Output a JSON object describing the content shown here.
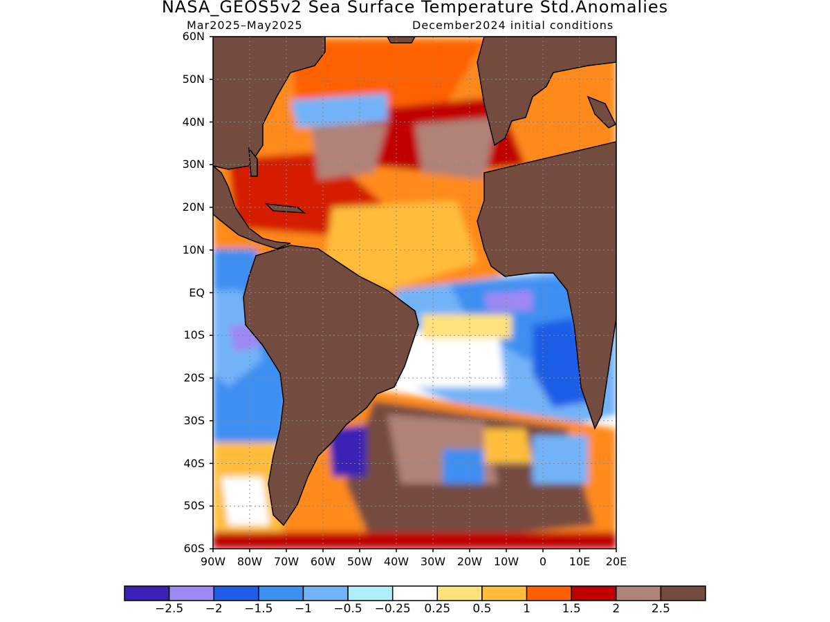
{
  "title": "NASA_GEOS5v2 Sea Surface Temperature Std.Anomalies",
  "subtitle_left": "Mar2025–May2025",
  "subtitle_right": "December2024 initial conditions",
  "lat_labels": [
    "60N",
    "50N",
    "40N",
    "30N",
    "20N",
    "10N",
    "EQ",
    "10S",
    "20S",
    "30S",
    "40S",
    "50S",
    "60S"
  ],
  "lon_labels": [
    "90W",
    "80W",
    "70W",
    "60W",
    "50W",
    "40W",
    "30W",
    "20W",
    "10W",
    "0",
    "10E",
    "20E"
  ],
  "colorbar": {
    "colors": [
      "#3b22b5",
      "#9e88f2",
      "#1f5de6",
      "#3d8ff2",
      "#72b3f8",
      "#aeeef8",
      "#ffffff",
      "#ffe27a",
      "#ffbd3a",
      "#ff6000",
      "#c00000",
      "#b08278",
      "#744c3f"
    ],
    "labels": [
      "−2.5",
      "−2",
      "−1.5",
      "−1",
      "−0.5",
      "−0.25",
      "0.25",
      "0.5",
      "1",
      "1.5",
      "2",
      "2.5"
    ]
  },
  "map": {
    "lat_range": [
      -60,
      60
    ],
    "lon_range": [
      -90,
      20
    ],
    "land_color": "#744c3f"
  }
}
